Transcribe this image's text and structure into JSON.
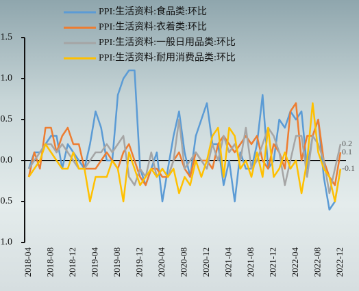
{
  "chart_data": {
    "type": "line",
    "categories": [
      "2018-04",
      null,
      null,
      null,
      "2018-08",
      null,
      null,
      null,
      "2018-12",
      null,
      null,
      null,
      "2019-04",
      null,
      null,
      null,
      "2019-08",
      null,
      null,
      null,
      "2019-12",
      null,
      null,
      null,
      "2020-04",
      null,
      null,
      null,
      "2020-08",
      null,
      null,
      null,
      "2020-12",
      null,
      null,
      null,
      "2021-04",
      null,
      null,
      null,
      "2021-08",
      null,
      null,
      null,
      "2021-12",
      null,
      null,
      null,
      "2022-04",
      null,
      null,
      null,
      "2022-08",
      null,
      null,
      null,
      "2022-12"
    ],
    "series": [
      {
        "name": "PPI:生活资料:食品类:环比",
        "color": "#5b9bd5",
        "values": [
          -0.1,
          0.1,
          0.1,
          0.2,
          0.3,
          0.3,
          -0.1,
          0.2,
          0.1,
          0.0,
          -0.1,
          0.2,
          0.6,
          0.4,
          0.0,
          0.0,
          0.8,
          1.0,
          1.1,
          1.1,
          -0.1,
          -0.3,
          -0.1,
          0.1,
          -0.5,
          -0.1,
          0.3,
          0.6,
          0.1,
          -0.2,
          0.3,
          0.5,
          0.7,
          0.2,
          0.2,
          -0.3,
          0.0,
          -0.5,
          0.1,
          -0.1,
          -0.1,
          0.2,
          0.8,
          -0.1,
          0.0,
          0.5,
          0.4,
          0.6,
          0.5,
          0.6,
          -0.1,
          0.3,
          0.5,
          -0.2,
          -0.6,
          -0.5,
          -0.1
        ]
      },
      {
        "name": "PPI:生活资料:衣着类:环比",
        "color": "#ed7d31",
        "values": [
          -0.2,
          0.1,
          -0.1,
          0.4,
          0.4,
          0.1,
          0.3,
          0.4,
          0.2,
          0.2,
          -0.1,
          -0.1,
          -0.1,
          0.0,
          0.1,
          0.0,
          -0.1,
          0.1,
          0.2,
          0.0,
          -0.2,
          -0.3,
          -0.1,
          -0.1,
          -0.2,
          -0.2,
          0.0,
          0.1,
          -0.1,
          -0.2,
          0.1,
          0.0,
          0.0,
          -0.1,
          0.2,
          0.3,
          0.2,
          0.1,
          0.2,
          0.3,
          0.2,
          0.3,
          0.0,
          -0.1,
          0.2,
          0.1,
          -0.1,
          0.6,
          0.7,
          0.0,
          0.3,
          0.3,
          0.5,
          0.0,
          -0.2,
          -0.3,
          0.1
        ],
        "value_labels": [
          null,
          null,
          null,
          null,
          null,
          null,
          null,
          null,
          null,
          null,
          null,
          null,
          null,
          null,
          null,
          null,
          null,
          null,
          null,
          null,
          null,
          null,
          null,
          null,
          null,
          null,
          null,
          null,
          null,
          null,
          null,
          null,
          null,
          null,
          null,
          null,
          null,
          null,
          null,
          null,
          null,
          null,
          null,
          null,
          null,
          null,
          null,
          null,
          null,
          null,
          null,
          null,
          null,
          null,
          null,
          null,
          "0.1"
        ]
      },
      {
        "name": "PPI:生活资料:一般日用品类:环比",
        "color": "#a5a5a5",
        "values": [
          -0.1,
          0.0,
          0.1,
          0.2,
          0.2,
          0.1,
          0.2,
          0.1,
          0.0,
          -0.1,
          -0.1,
          0.0,
          0.1,
          0.1,
          0.2,
          0.1,
          0.2,
          0.3,
          -0.2,
          -0.3,
          -0.1,
          -0.2,
          0.1,
          -0.2,
          -0.1,
          -0.2,
          0.0,
          0.5,
          -0.1,
          0.0,
          0.1,
          0.0,
          -0.1,
          0.2,
          0.0,
          0.3,
          0.1,
          0.2,
          0.0,
          0.4,
          -0.1,
          0.0,
          0.2,
          0.4,
          0.3,
          0.1,
          -0.3,
          0.0,
          0.3,
          0.3,
          -0.2,
          0.3,
          0.2,
          0.0,
          -0.4,
          -0.1,
          0.2
        ],
        "value_labels": [
          null,
          null,
          null,
          null,
          null,
          null,
          null,
          null,
          null,
          null,
          null,
          null,
          null,
          null,
          null,
          null,
          null,
          null,
          null,
          null,
          null,
          null,
          null,
          null,
          null,
          null,
          null,
          null,
          null,
          null,
          null,
          null,
          null,
          null,
          null,
          null,
          null,
          null,
          null,
          null,
          null,
          null,
          null,
          null,
          null,
          null,
          null,
          null,
          null,
          null,
          null,
          null,
          null,
          null,
          null,
          null,
          "0.2"
        ]
      },
      {
        "name": "PPI:生活资料:耐用消费品类:环比",
        "color": "#ffc000",
        "values": [
          -0.2,
          -0.1,
          0.0,
          0.2,
          0.1,
          0.0,
          -0.1,
          -0.1,
          0.1,
          -0.1,
          -0.1,
          -0.5,
          -0.2,
          -0.2,
          -0.2,
          0.0,
          -0.1,
          -0.5,
          0.1,
          -0.1,
          -0.3,
          -0.2,
          -0.1,
          -0.2,
          -0.1,
          -0.2,
          -0.1,
          -0.4,
          -0.2,
          -0.3,
          0.0,
          -0.2,
          0.0,
          0.3,
          0.4,
          -0.2,
          0.4,
          0.3,
          -0.1,
          0.0,
          -0.2,
          0.1,
          -0.2,
          0.4,
          -0.2,
          -0.1,
          0.1,
          -0.1,
          0.0,
          -0.4,
          0.0,
          0.7,
          0.1,
          -0.1,
          -0.2,
          -0.5,
          -0.1
        ],
        "value_labels": [
          null,
          null,
          null,
          null,
          null,
          null,
          null,
          null,
          null,
          null,
          null,
          null,
          null,
          null,
          null,
          null,
          null,
          null,
          null,
          null,
          null,
          null,
          null,
          null,
          null,
          null,
          null,
          null,
          null,
          null,
          null,
          null,
          null,
          null,
          null,
          null,
          null,
          null,
          null,
          null,
          null,
          null,
          null,
          null,
          null,
          null,
          null,
          null,
          null,
          null,
          null,
          null,
          null,
          null,
          null,
          null,
          "-0.1"
        ]
      }
    ],
    "ylim": [
      -1.0,
      1.5
    ],
    "yticks": [
      {
        "value": -1.0,
        "label": "-1.0"
      },
      {
        "value": -0.5,
        "label": "-0.5"
      },
      {
        "value": 0.0,
        "label": "0.0"
      },
      {
        "value": 0.5,
        "label": "0.5"
      },
      {
        "value": 1.0,
        "label": "1.0"
      },
      {
        "value": 1.5,
        "label": "1.5"
      }
    ],
    "grid": false
  }
}
